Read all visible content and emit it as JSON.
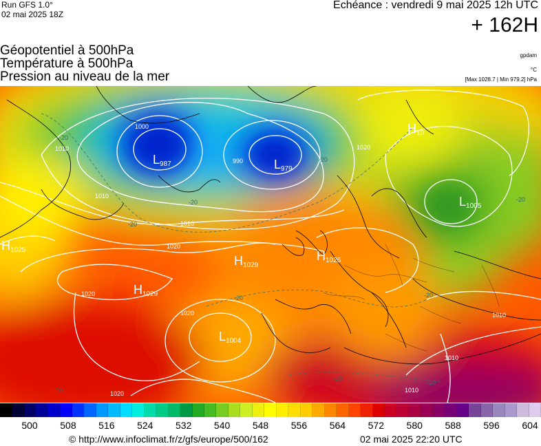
{
  "header": {
    "run": "Run GFS 1.0°",
    "run_date": "02 mai 2025 18Z",
    "valid": "Echéance : vendredi 9 mai 2025 12h UTC",
    "forecast_hour": "+ 162H"
  },
  "titles": {
    "line1": "Géopotentiel à 500hPa",
    "line2": "Température à 500hPa",
    "line3": "Pression au niveau de la mer"
  },
  "units": {
    "geopotential": "gpdam",
    "temperature": "°C",
    "pressure": "[Max 1028.7 | Min 979.2] hPa"
  },
  "map": {
    "pressure_centers": [
      {
        "type": "L",
        "value": "987"
      },
      {
        "type": "L",
        "value": "979"
      },
      {
        "type": "H",
        "value": "10"
      },
      {
        "type": "L",
        "value": "1005"
      },
      {
        "type": "H",
        "value": "1025"
      },
      {
        "type": "H",
        "value": "1029"
      },
      {
        "type": "H",
        "value": "1026"
      },
      {
        "type": "H",
        "value": "1029"
      },
      {
        "type": "L",
        "value": "1004"
      }
    ],
    "isobar_labels": [
      "1000",
      "990",
      "1010",
      "1010",
      "1010",
      "1020",
      "1020",
      "1020",
      "1020",
      "1010",
      "1010",
      "1010",
      "1020"
    ],
    "temperature_labels": [
      "-20",
      "-20",
      "-20",
      "-20",
      "-20",
      "-20",
      "-20",
      "-10",
      "-10",
      "-10"
    ]
  },
  "scale": {
    "ticks": [
      "500",
      "508",
      "516",
      "524",
      "532",
      "540",
      "548",
      "556",
      "564",
      "572",
      "580",
      "588",
      "596",
      "604"
    ],
    "colors": [
      "#000000",
      "#000033",
      "#000066",
      "#000099",
      "#0000cc",
      "#0000ff",
      "#0033ff",
      "#0066ff",
      "#0099ff",
      "#00bbff",
      "#00ddff",
      "#00eedd",
      "#00ddaa",
      "#00cc88",
      "#00bb66",
      "#009944",
      "#22aa22",
      "#44bb22",
      "#77cc22",
      "#aadd22",
      "#ccee22",
      "#eeee11",
      "#ffff00",
      "#ffee00",
      "#ffdd00",
      "#ffcc00",
      "#ffaa00",
      "#ff8800",
      "#ff6600",
      "#ff4400",
      "#ee2200",
      "#dd0000",
      "#cc0022",
      "#bb0033",
      "#aa0044",
      "#990055",
      "#880066",
      "#770077",
      "#660088",
      "#774499",
      "#8866aa",
      "#9988bb",
      "#aa99cc",
      "#ccbbdd",
      "#ddccee"
    ]
  },
  "footer": {
    "url": "© http://www.infoclimat.fr/z/gfs/europe/500/162",
    "timestamp": "02 mai 2025 22:20 UTC"
  }
}
